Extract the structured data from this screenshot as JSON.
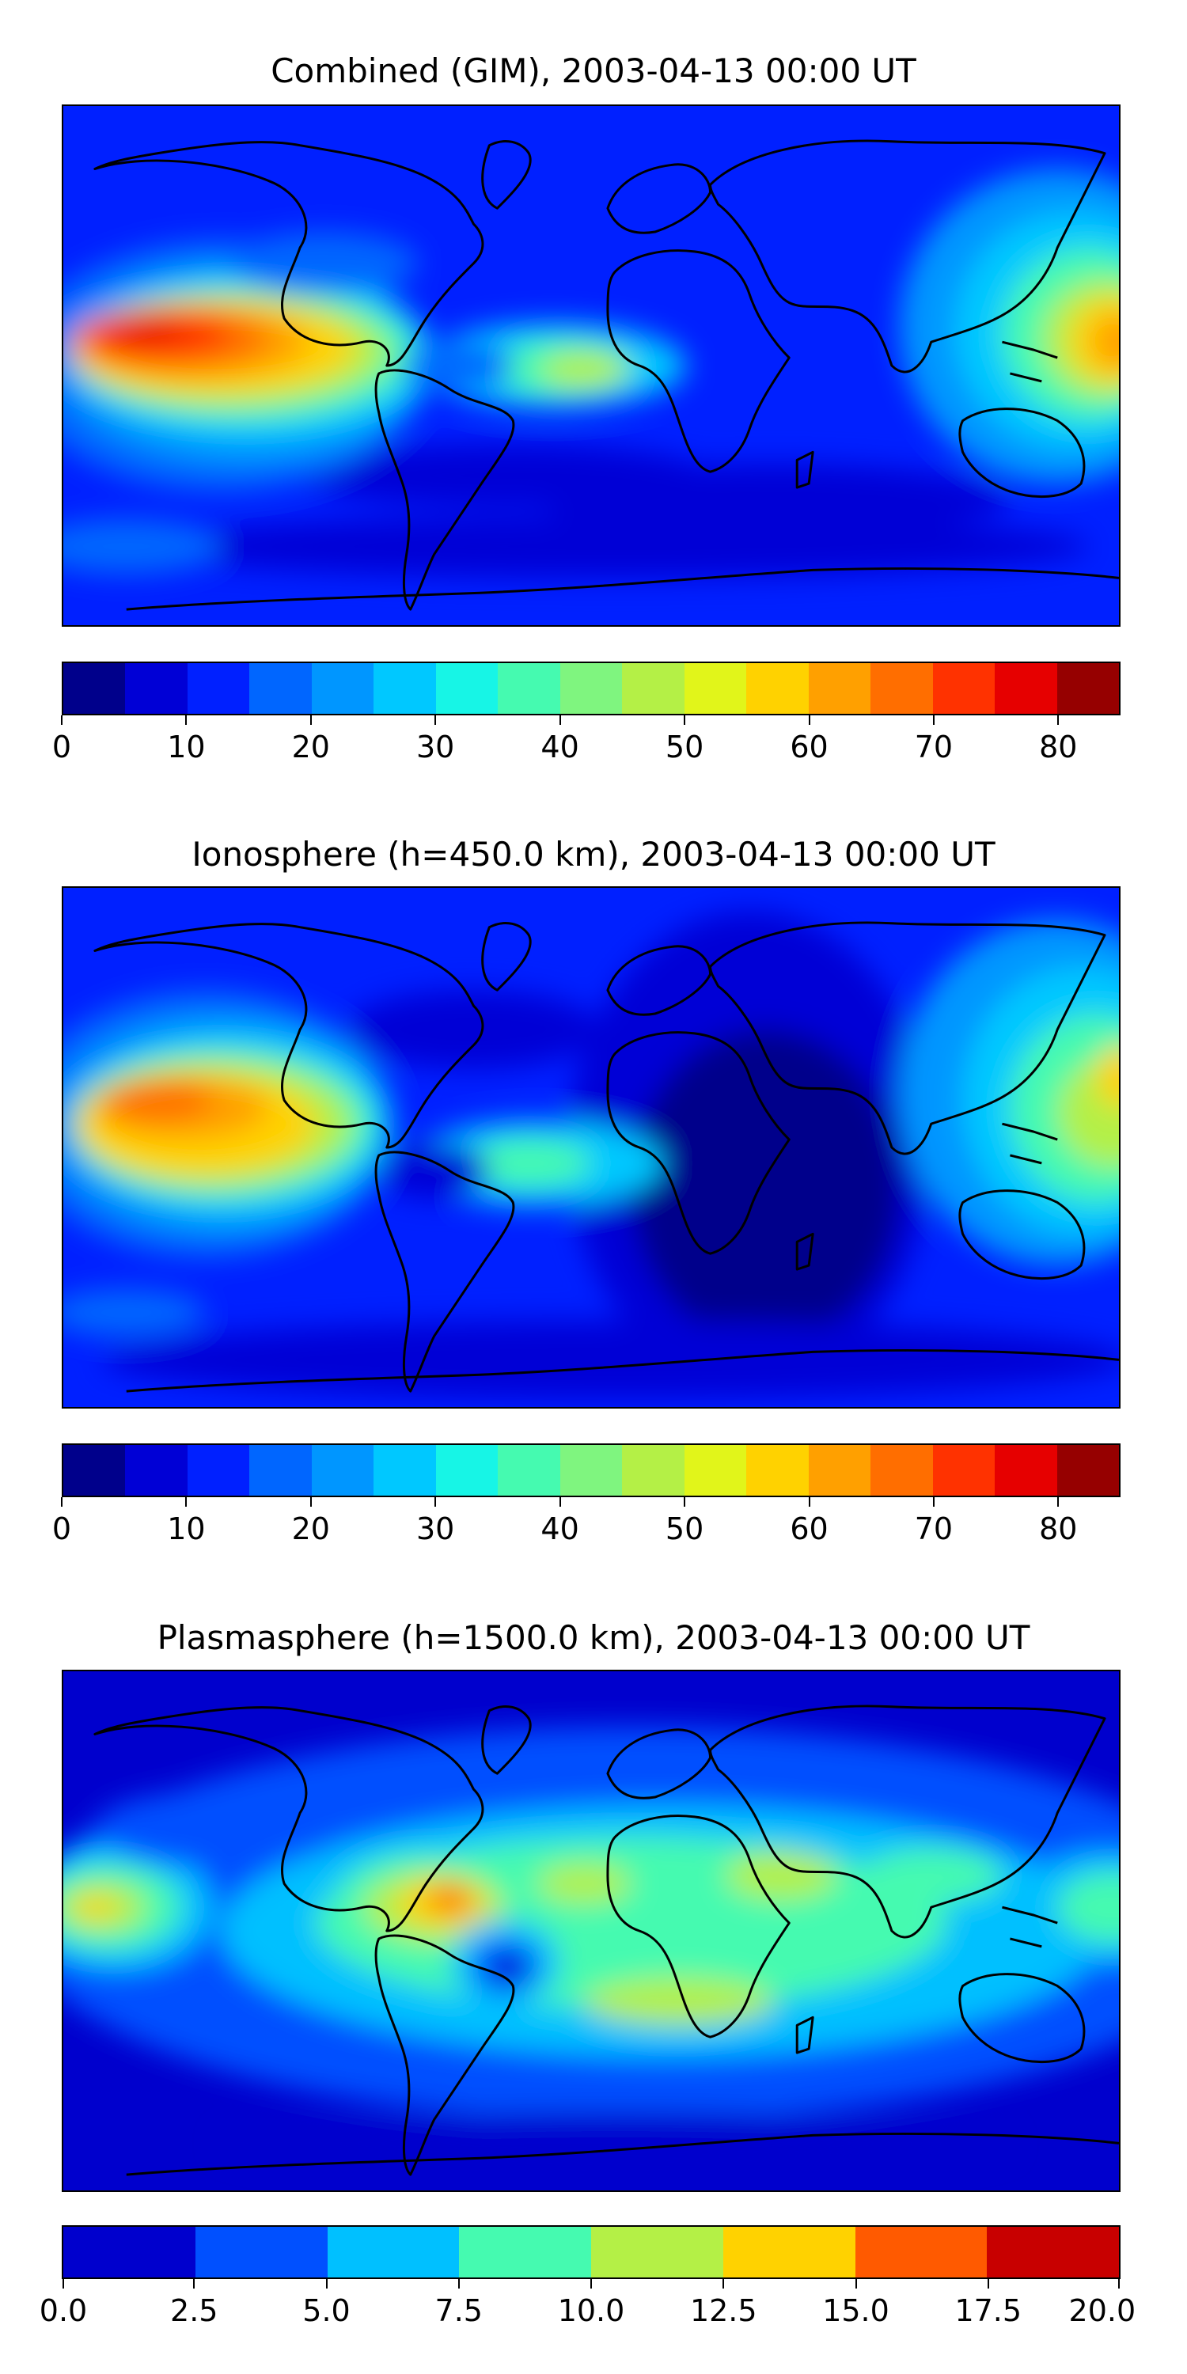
{
  "panels": [
    {
      "title": "Combined (GIM), 2003-04-13 00:00 UT",
      "legend_ticks": [
        "0",
        "10",
        "20",
        "30",
        "40",
        "50",
        "60",
        "70",
        "80"
      ],
      "chart_data": {
        "type": "heatmap",
        "title": "Combined (GIM), 2003-04-13 00:00 UT",
        "levels": [
          0,
          5,
          10,
          15,
          20,
          25,
          30,
          35,
          40,
          45,
          50,
          55,
          60,
          65,
          70,
          75,
          80,
          85
        ],
        "features": [
          {
            "region": "eastern Pacific, west of South America",
            "value": 77
          },
          {
            "region": "central Pacific band",
            "value": 65
          },
          {
            "region": "tropical Atlantic",
            "value": 40
          },
          {
            "region": "western Pacific / Indonesia",
            "value": 60
          },
          {
            "region": "Indian Ocean / Africa",
            "value": 15
          },
          {
            "region": "high latitudes",
            "value": 8
          }
        ]
      }
    },
    {
      "title": "Ionosphere  (h=450.0 km), 2003-04-13 00:00 UT",
      "legend_ticks": [
        "0",
        "10",
        "20",
        "30",
        "40",
        "50",
        "60",
        "70",
        "80"
      ],
      "chart_data": {
        "type": "heatmap",
        "title": "Ionosphere  (h=450.0 km), 2003-04-13 00:00 UT",
        "levels": [
          0,
          5,
          10,
          15,
          20,
          25,
          30,
          35,
          40,
          45,
          50,
          55,
          60,
          65,
          70,
          75,
          80,
          85
        ],
        "features": [
          {
            "region": "eastern Pacific, west of North America",
            "value": 68
          },
          {
            "region": "central Pacific band",
            "value": 57
          },
          {
            "region": "tropical Atlantic",
            "value": 35
          },
          {
            "region": "western Pacific / Indonesia",
            "value": 45
          },
          {
            "region": "Africa / Indian Ocean",
            "value": 3
          },
          {
            "region": "high latitudes",
            "value": 8
          }
        ]
      }
    },
    {
      "title": "Plasmasphere (h=1500.0 km), 2003-04-13 00:00 UT",
      "legend_ticks": [
        "0.0",
        "2.5",
        "5.0",
        "7.5",
        "10.0",
        "12.5",
        "15.0",
        "17.5",
        "20.0"
      ],
      "chart_data": {
        "type": "heatmap",
        "title": "Plasmasphere (h=1500.0 km), 2003-04-13 00:00 UT",
        "levels": [
          0,
          2.5,
          5,
          7.5,
          10,
          12.5,
          15,
          17.5,
          20
        ],
        "features": [
          {
            "region": "northern South America",
            "value": 16
          },
          {
            "region": "eastern Pacific",
            "value": 13
          },
          {
            "region": "Africa / Arabia",
            "value": 10
          },
          {
            "region": "off Brazil (local minimum)",
            "value": 1.5
          },
          {
            "region": "high latitudes",
            "value": 1
          }
        ]
      }
    }
  ],
  "colormaps": {
    "tec17": [
      "#00008b",
      "#0000d6",
      "#0020ff",
      "#0066ff",
      "#0096ff",
      "#00c8ff",
      "#17f5e6",
      "#45fab0",
      "#7ff57f",
      "#b4f046",
      "#e1f51a",
      "#ffd200",
      "#ffa000",
      "#ff6e00",
      "#ff3200",
      "#e60000",
      "#960000"
    ],
    "plasma8": [
      "#0000cd",
      "#0050ff",
      "#00c0ff",
      "#45fab0",
      "#b4f046",
      "#ffd200",
      "#ff5a00",
      "#c80000"
    ]
  }
}
